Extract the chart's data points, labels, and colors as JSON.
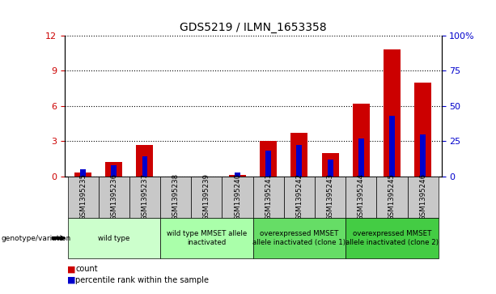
{
  "title": "GDS5219 / ILMN_1653358",
  "samples": [
    "GSM1395235",
    "GSM1395236",
    "GSM1395237",
    "GSM1395238",
    "GSM1395239",
    "GSM1395240",
    "GSM1395241",
    "GSM1395242",
    "GSM1395243",
    "GSM1395244",
    "GSM1395245",
    "GSM1395246"
  ],
  "count_values": [
    0.3,
    1.2,
    2.7,
    0.0,
    0.0,
    0.1,
    3.0,
    3.7,
    2.0,
    6.2,
    10.8,
    8.0
  ],
  "percentile_values": [
    5,
    8,
    14,
    0,
    0,
    3,
    18,
    22,
    12,
    27,
    43,
    30
  ],
  "left_ylim": [
    0,
    12
  ],
  "right_ylim": [
    0,
    100
  ],
  "left_yticks": [
    0,
    3,
    6,
    9,
    12
  ],
  "right_yticks": [
    0,
    25,
    50,
    75,
    100
  ],
  "right_yticklabels": [
    "0",
    "25",
    "50",
    "75",
    "100%"
  ],
  "bar_color": "#cc0000",
  "percentile_color": "#0000cc",
  "genotype_label": "genotype/variation",
  "groups": [
    {
      "label": "wild type",
      "start": 0,
      "end": 3,
      "color": "#ccffcc"
    },
    {
      "label": "wild type MMSET allele\ninactivated",
      "start": 3,
      "end": 6,
      "color": "#aaffaa"
    },
    {
      "label": "overexpressed MMSET\nallele inactivated (clone 1)",
      "start": 6,
      "end": 9,
      "color": "#66dd66"
    },
    {
      "label": "overexpressed MMSET\nallele inactivated (clone 2)",
      "start": 9,
      "end": 12,
      "color": "#44cc44"
    }
  ],
  "legend_count_label": "count",
  "legend_pct_label": "percentile rank within the sample",
  "left_ylabel_color": "#cc0000",
  "right_ylabel_color": "#0000cc",
  "bar_width": 0.55,
  "pct_bar_width": 0.18,
  "title_fontsize": 10,
  "sample_row_color": "#c8c8c8",
  "plot_bg": "#ffffff"
}
